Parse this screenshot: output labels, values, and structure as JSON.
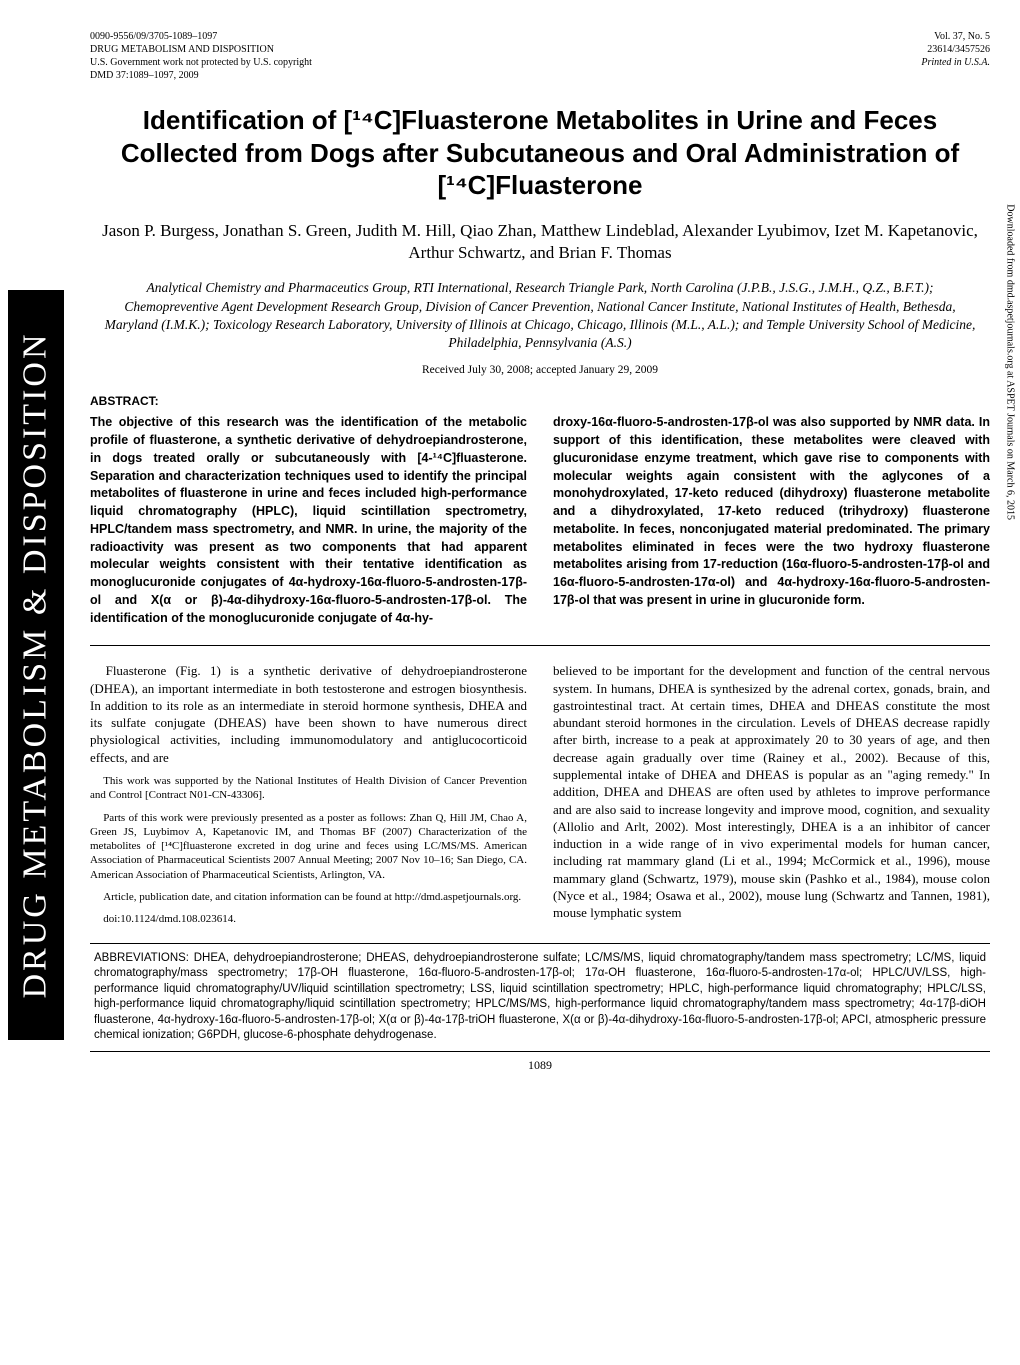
{
  "header": {
    "left_lines": [
      "0090-9556/09/3705-1089–1097",
      "DRUG METABOLISM AND DISPOSITION",
      "U.S. Government work not protected by U.S. copyright",
      "DMD 37:1089–1097, 2009"
    ],
    "right_lines": [
      "Vol. 37, No. 5",
      "23614/3457526",
      "Printed in U.S.A."
    ]
  },
  "title": "Identification of [¹⁴C]Fluasterone Metabolites in Urine and Feces Collected from Dogs after Subcutaneous and Oral Administration of [¹⁴C]Fluasterone",
  "authors": "Jason P. Burgess, Jonathan S. Green, Judith M. Hill, Qiao Zhan, Matthew Lindeblad, Alexander Lyubimov, Izet M. Kapetanovic, Arthur Schwartz, and Brian F. Thomas",
  "affiliations": "Analytical Chemistry and Pharmaceutics Group, RTI International, Research Triangle Park, North Carolina (J.P.B., J.S.G., J.M.H., Q.Z., B.F.T.); Chemopreventive Agent Development Research Group, Division of Cancer Prevention, National Cancer Institute, National Institutes of Health, Bethesda, Maryland (I.M.K.); Toxicology Research Laboratory, University of Illinois at Chicago, Chicago, Illinois (M.L., A.L.); and Temple University School of Medicine, Philadelphia, Pennsylvania (A.S.)",
  "received": "Received July 30, 2008; accepted January 29, 2009",
  "abstract_label": "ABSTRACT:",
  "abstract": {
    "left": "The objective of this research was the identification of the metabolic profile of fluasterone, a synthetic derivative of dehydroepiandrosterone, in dogs treated orally or subcutaneously with [4-¹⁴C]fluasterone. Separation and characterization techniques used to identify the principal metabolites of fluasterone in urine and feces included high-performance liquid chromatography (HPLC), liquid scintillation spectrometry, HPLC/tandem mass spectrometry, and NMR. In urine, the majority of the radioactivity was present as two components that had apparent molecular weights consistent with their tentative identification as monoglucuronide conjugates of 4α-hydroxy-16α-fluoro-5-androsten-17β-ol and X(α or β)-4α-dihydroxy-16α-fluoro-5-androsten-17β-ol. The identification of the monoglucuronide conjugate of 4α-hy-",
    "right": "droxy-16α-fluoro-5-androsten-17β-ol was also supported by NMR data. In support of this identification, these metabolites were cleaved with glucuronidase enzyme treatment, which gave rise to components with molecular weights again consistent with the aglycones of a monohydroxylated, 17-keto reduced (dihydroxy) fluasterone metabolite and a dihydroxylated, 17-keto reduced (trihydroxy) fluasterone metabolite. In feces, nonconjugated material predominated. The primary metabolites eliminated in feces were the two hydroxy fluasterone metabolites arising from 17-reduction (16α-fluoro-5-androsten-17β-ol and 16α-fluoro-5-androsten-17α-ol) and 4α-hydroxy-16α-fluoro-5-androsten-17β-ol that was present in urine in glucuronide form."
  },
  "body": {
    "left_p1": "Fluasterone (Fig. 1) is a synthetic derivative of dehydroepiandrosterone (DHEA), an important intermediate in both testosterone and estrogen biosynthesis. In addition to its role as an intermediate in steroid hormone synthesis, DHEA and its sulfate conjugate (DHEAS) have been shown to have numerous direct physiological activities, including immunomodulatory and antiglucocorticoid effects, and are",
    "left_fn1": "This work was supported by the National Institutes of Health Division of Cancer Prevention and Control [Contract N01-CN-43306].",
    "left_fn2": "Parts of this work were previously presented as a poster as follows: Zhan Q, Hill JM, Chao A, Green JS, Luybimov A, Kapetanovic IM, and Thomas BF (2007) Characterization of the metabolites of [¹⁴C]fluasterone excreted in dog urine and feces using LC/MS/MS. American Association of Pharmaceutical Scientists 2007 Annual Meeting; 2007 Nov 10–16; San Diego, CA. American Association of Pharmaceutical Scientists, Arlington, VA.",
    "left_fn3": "Article, publication date, and citation information can be found at http://dmd.aspetjournals.org.",
    "left_fn4": "doi:10.1124/dmd.108.023614.",
    "right_p1": "believed to be important for the development and function of the central nervous system. In humans, DHEA is synthesized by the adrenal cortex, gonads, brain, and gastrointestinal tract. At certain times, DHEA and DHEAS constitute the most abundant steroid hormones in the circulation. Levels of DHEAS decrease rapidly after birth, increase to a peak at approximately 20 to 30 years of age, and then decrease again gradually over time (Rainey et al., 2002). Because of this, supplemental intake of DHEA and DHEAS is popular as an \"aging remedy.\" In addition, DHEA and DHEAS are often used by athletes to improve performance and are also said to increase longevity and improve mood, cognition, and sexuality (Allolio and Arlt, 2002). Most interestingly, DHEA is a an inhibitor of cancer induction in a wide range of in vivo experimental models for human cancer, including rat mammary gland (Li et al., 1994; McCormick et al., 1996), mouse mammary gland (Schwartz, 1979), mouse skin (Pashko et al., 1984), mouse colon (Nyce et al., 1984; Osawa et al., 2002), mouse lung (Schwartz and Tannen, 1981), mouse lymphatic system"
  },
  "abbreviations": "ABBREVIATIONS: DHEA, dehydroepiandrosterone; DHEAS, dehydroepiandrosterone sulfate; LC/MS/MS, liquid chromatography/tandem mass spectrometry; LC/MS, liquid chromatography/mass spectrometry; 17β-OH fluasterone, 16α-fluoro-5-androsten-17β-ol; 17α-OH fluasterone, 16α-fluoro-5-androsten-17α-ol; HPLC/UV/LSS, high-performance liquid chromatography/UV/liquid scintillation spectrometry; LSS, liquid scintillation spectrometry; HPLC, high-performance liquid chromatography; HPLC/LSS, high-performance liquid chromatography/liquid scintillation spectrometry; HPLC/MS/MS, high-performance liquid chromatography/tandem mass spectrometry; 4α-17β-diOH fluasterone, 4α-hydroxy-16α-fluoro-5-androsten-17β-ol; X(α or β)-4α-17β-triOH fluasterone, X(α or β)-4α-dihydroxy-16α-fluoro-5-androsten-17β-ol; APCI, atmospheric pressure chemical ionization; G6PDH, glucose-6-phosphate dehydrogenase.",
  "page_number": "1089",
  "sidebar": "DRUG METABOLISM & DISPOSITION",
  "margin_note": "Downloaded from dmd.aspetjournals.org at ASPET Journals on March 6, 2015"
}
